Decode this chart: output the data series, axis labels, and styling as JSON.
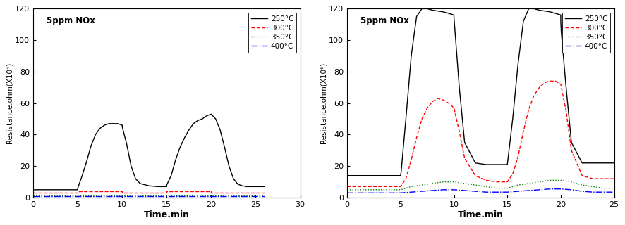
{
  "title_annotation": "5ppm NOx",
  "ylabel1": "Resistance.ohm(X10⁴)",
  "ylabel2": "Resistance.ohm(X10⁶)",
  "xlabel": "Time.min",
  "legend_labels": [
    "250°C",
    "300°C",
    "350°C",
    "400°C"
  ],
  "legend_styles": [
    {
      "color": "black",
      "linestyle": "-"
    },
    {
      "color": "red",
      "linestyle": "--"
    },
    {
      "color": "green",
      "linestyle": ":"
    },
    {
      "color": "blue",
      "linestyle": "-."
    }
  ],
  "plot1": {
    "xlim": [
      0,
      30
    ],
    "ylim": [
      0,
      120
    ],
    "yticks": [
      0,
      20,
      40,
      60,
      80,
      100,
      120
    ],
    "xticks": [
      0,
      5,
      10,
      15,
      20,
      25,
      30
    ],
    "curves": {
      "250C": {
        "color": "black",
        "linestyle": "-",
        "x": [
          0,
          5.0,
          5.0,
          5.5,
          6.0,
          6.5,
          7.0,
          7.5,
          8.0,
          8.5,
          9.0,
          9.5,
          10.0,
          10.0,
          10.5,
          11.0,
          11.5,
          12.0,
          13.0,
          14.0,
          15.0,
          15.0,
          15.5,
          16.0,
          16.5,
          17.0,
          17.5,
          18.0,
          18.5,
          19.0,
          19.5,
          20.0,
          20.5,
          21.0,
          21.5,
          22.0,
          22.5,
          23.0,
          23.5,
          24.0,
          25.0,
          26.0
        ],
        "y": [
          5,
          5.0,
          6.0,
          14,
          23,
          33,
          40,
          44,
          46,
          47,
          47,
          47,
          46,
          45,
          34,
          20,
          12,
          9.0,
          7.5,
          7.0,
          7.0,
          8.0,
          14,
          24,
          32,
          38,
          43,
          47,
          49,
          50,
          52,
          53,
          50,
          43,
          32,
          20,
          12,
          8.5,
          7.5,
          7.0,
          7.0,
          7.0
        ]
      },
      "300C": {
        "color": "red",
        "linestyle": "--",
        "x": [
          0,
          5.0,
          5.0,
          10.0,
          10.0,
          15.0,
          15.0,
          20.0,
          20.0,
          26.0
        ],
        "y": [
          3,
          3,
          4,
          4,
          3,
          3,
          4,
          4,
          3,
          3
        ]
      },
      "350C": {
        "color": "green",
        "linestyle": ":",
        "x": [
          0,
          26.0
        ],
        "y": [
          1.5,
          1.5
        ]
      },
      "400C": {
        "color": "blue",
        "linestyle": "-.",
        "x": [
          0,
          26.0
        ],
        "y": [
          0.8,
          0.8
        ]
      }
    }
  },
  "plot2": {
    "xlim": [
      0,
      25
    ],
    "ylim": [
      0,
      120
    ],
    "yticks": [
      0,
      20,
      40,
      60,
      80,
      100,
      120
    ],
    "xticks": [
      0,
      5,
      10,
      15,
      20,
      25
    ],
    "curves": {
      "250C": {
        "color": "black",
        "linestyle": "-",
        "x": [
          0,
          1,
          2,
          3,
          4,
          5.0,
          5.0,
          5.05,
          5.5,
          6.0,
          6.5,
          7.0,
          7.5,
          8.0,
          9.0,
          9.5,
          10.0,
          10.0,
          10.05,
          10.5,
          11.0,
          12.0,
          13.0,
          14.0,
          14.5,
          15.0,
          15.0,
          15.05,
          15.5,
          16.0,
          16.5,
          17.0,
          17.5,
          18.0,
          19.0,
          19.5,
          20.0,
          20.0,
          20.05,
          20.5,
          21.0,
          22.0,
          23.0,
          24.0,
          25.0
        ],
        "y": [
          14,
          14,
          14,
          14,
          14,
          14,
          14,
          16,
          50,
          90,
          115,
          120,
          120,
          119,
          118,
          117,
          116,
          115,
          110,
          70,
          35,
          22,
          21,
          21,
          21,
          21,
          21,
          24,
          50,
          85,
          112,
          120,
          120,
          119,
          118,
          117,
          116,
          112,
          105,
          70,
          35,
          22,
          22,
          22,
          22
        ]
      },
      "300C": {
        "color": "red",
        "linestyle": "--",
        "x": [
          0,
          1,
          2,
          3,
          4,
          5.0,
          5.5,
          6.0,
          6.5,
          7.0,
          7.5,
          8.0,
          8.5,
          9.0,
          9.5,
          10.0,
          10.5,
          11.0,
          12.0,
          13.0,
          14.0,
          14.5,
          15.0,
          15.5,
          16.0,
          16.5,
          17.0,
          17.5,
          18.0,
          18.5,
          19.0,
          19.5,
          20.0,
          20.5,
          21.0,
          22.0,
          23.0,
          24.0,
          25.0
        ],
        "y": [
          7,
          7,
          7,
          7,
          7,
          7,
          12,
          24,
          38,
          50,
          57,
          61,
          63,
          62,
          60,
          57,
          42,
          25,
          14,
          11,
          10,
          10,
          10,
          15,
          26,
          42,
          56,
          65,
          70,
          73,
          74,
          74,
          72,
          55,
          30,
          14,
          12,
          12,
          12
        ]
      },
      "350C": {
        "color": "green",
        "linestyle": ":",
        "x": [
          0,
          5,
          5.5,
          6,
          7,
          8,
          9,
          10,
          11,
          12,
          13,
          14,
          15,
          15.5,
          16,
          17,
          18,
          19,
          20,
          21,
          22,
          23,
          24,
          25
        ],
        "y": [
          5,
          5,
          6,
          7,
          8,
          9,
          10,
          10,
          9,
          8,
          7,
          6,
          6,
          7,
          8,
          9,
          10,
          11,
          11,
          10,
          8,
          7,
          6,
          6
        ]
      },
      "400C": {
        "color": "blue",
        "linestyle": "-.",
        "x": [
          0,
          5,
          6,
          7,
          8,
          9,
          10,
          11,
          12,
          13,
          14,
          15,
          16,
          17,
          18,
          19,
          20,
          21,
          22,
          23,
          24,
          25
        ],
        "y": [
          3,
          3,
          3.5,
          4,
          4.5,
          5,
          5,
          4.5,
          4,
          3.5,
          3.5,
          3.5,
          4,
          4.5,
          5,
          5.5,
          5.5,
          5,
          4,
          3.5,
          3.5,
          3.5
        ]
      }
    }
  }
}
